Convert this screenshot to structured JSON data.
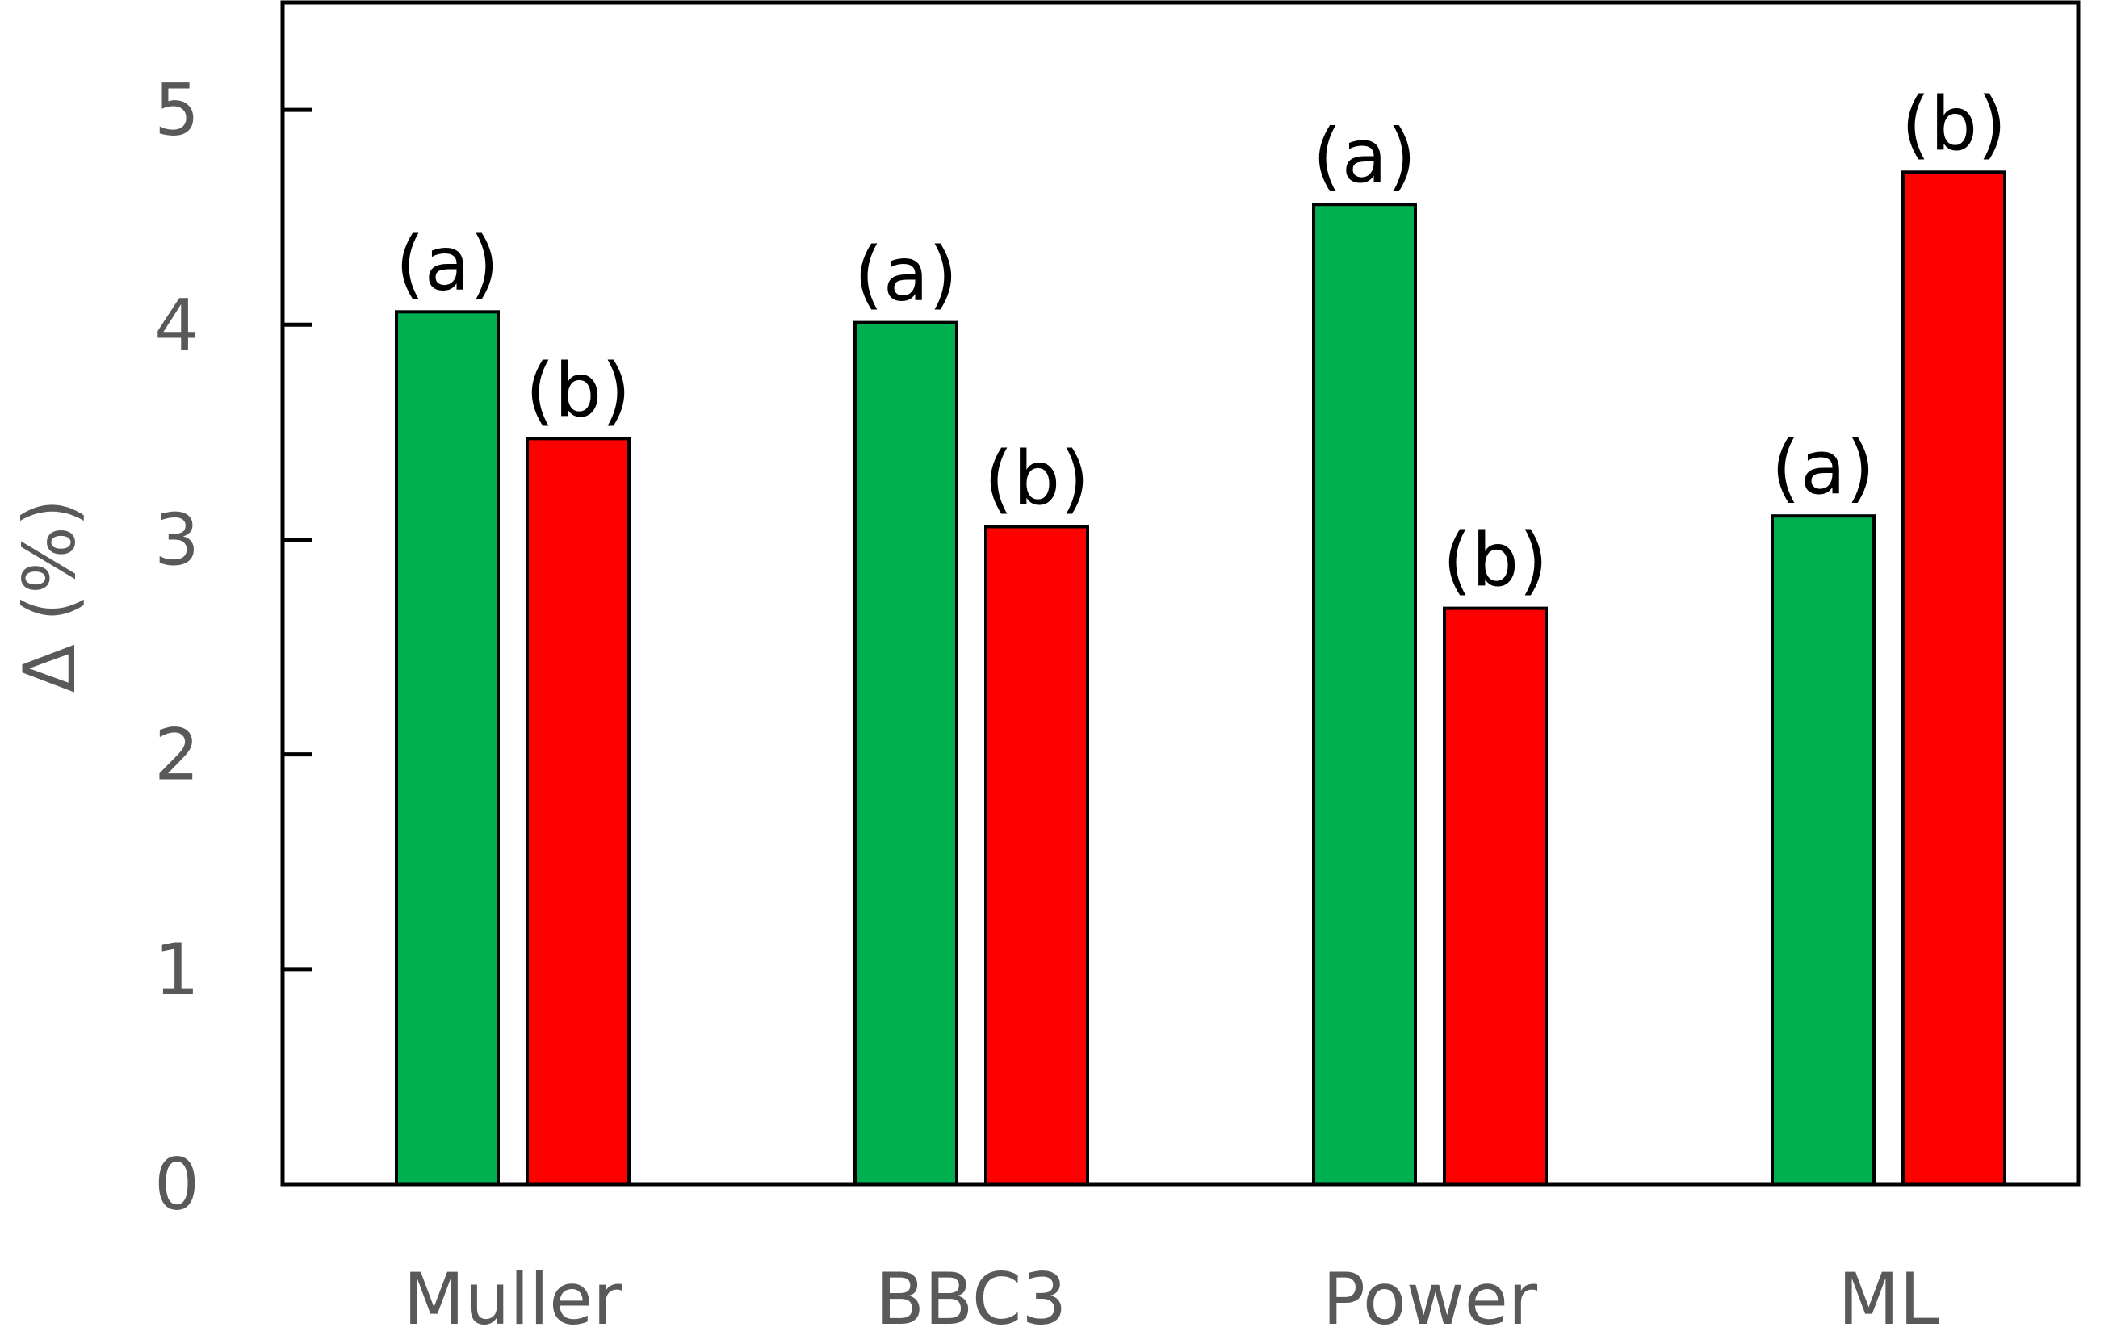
{
  "chart_data": {
    "type": "bar",
    "title": "",
    "xlabel": "",
    "ylabel": "Δ (%)",
    "categories": [
      "Muller",
      "BBC3",
      "Power",
      "ML"
    ],
    "series": [
      {
        "color": "#00b050",
        "values": [
          4.06,
          4.01,
          4.56,
          3.11
        ],
        "labels": [
          "(a)",
          "(a)",
          "(a)",
          "(a)"
        ]
      },
      {
        "color": "#ff0000",
        "values": [
          3.47,
          3.06,
          2.68,
          4.71
        ],
        "labels": [
          "(b)",
          "(b)",
          "(b)",
          "(b)"
        ]
      }
    ],
    "ylim": [
      0,
      5.5
    ],
    "yticks": [
      "0",
      "1",
      "2",
      "3",
      "4",
      "5"
    ],
    "grid": false,
    "legend": "none"
  }
}
